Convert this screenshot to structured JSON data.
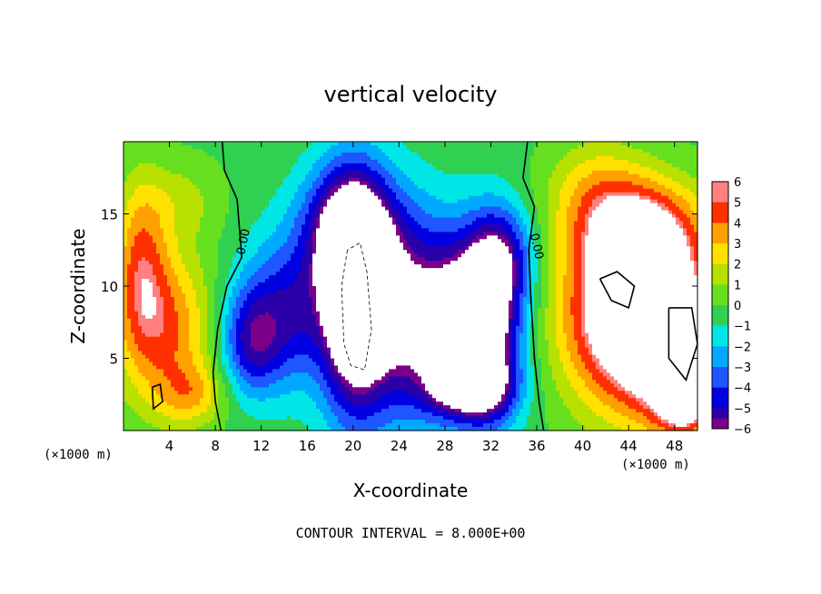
{
  "chart_data": {
    "type": "heatmap",
    "title": "vertical velocity",
    "xlabel": "X-coordinate",
    "ylabel": "Z-coordinate",
    "x_unit": "(×1000 m)",
    "y_unit": "(×1000 m)",
    "xlim": [
      0,
      50
    ],
    "ylim": [
      0,
      20
    ],
    "x_ticks": [
      4,
      8,
      12,
      16,
      20,
      24,
      28,
      32,
      36,
      40,
      44,
      48
    ],
    "y_ticks": [
      5,
      10,
      15
    ],
    "colorbar": {
      "min": -6,
      "max": 6,
      "ticks": [
        "6",
        "5",
        "4",
        "3",
        "2",
        "1",
        "0",
        "−1",
        "−2",
        "−3",
        "−4",
        "−5",
        "−6"
      ]
    },
    "contour_label": "0.00",
    "note": "CONTOUR INTERVAL = 8.000E+00",
    "regions": [
      {
        "x": 3.5,
        "y": 7,
        "value": 4.5,
        "sx": 3.0,
        "sy": 4.0
      },
      {
        "x": 1.5,
        "y": 12,
        "value": 3.5,
        "sx": 1.6,
        "sy": 4.0
      },
      {
        "x": 6.0,
        "y": 2.5,
        "value": 2.5,
        "sx": 2.0,
        "sy": 1.5
      },
      {
        "x": 5.0,
        "y": 16,
        "value": 1.5,
        "sx": 2.5,
        "sy": 2.0
      },
      {
        "x": 20.0,
        "y": 9,
        "value": -8.0,
        "sx": 2.0,
        "sy": 5.5
      },
      {
        "x": 24.0,
        "y": 8,
        "value": -6.0,
        "sx": 3.0,
        "sy": 5.0
      },
      {
        "x": 19.5,
        "y": 14,
        "value": -5.5,
        "sx": 3.0,
        "sy": 3.0
      },
      {
        "x": 14.0,
        "y": 8,
        "value": -4.5,
        "sx": 3.0,
        "sy": 3.5
      },
      {
        "x": 11.0,
        "y": 6,
        "value": -3.5,
        "sx": 1.8,
        "sy": 2.5
      },
      {
        "x": 29.0,
        "y": 8,
        "value": -5.5,
        "sx": 2.5,
        "sy": 4.0
      },
      {
        "x": 32.0,
        "y": 7,
        "value": -6.0,
        "sx": 2.0,
        "sy": 4.5
      },
      {
        "x": 30.0,
        "y": 3,
        "value": -6.0,
        "sx": 2.5,
        "sy": 1.5
      },
      {
        "x": 33.0,
        "y": 12,
        "value": -4.0,
        "sx": 2.0,
        "sy": 2.5
      },
      {
        "x": 44.0,
        "y": 8,
        "value": 9.0,
        "sx": 4.0,
        "sy": 4.5
      },
      {
        "x": 48.0,
        "y": 6,
        "value": 6.0,
        "sx": 2.5,
        "sy": 4.0
      },
      {
        "x": 45.0,
        "y": 14,
        "value": 4.5,
        "sx": 4.0,
        "sy": 2.5
      },
      {
        "x": 41.0,
        "y": 17,
        "value": 2.0,
        "sx": 3.0,
        "sy": 2.5
      },
      {
        "x": 49.0,
        "y": 2,
        "value": 5.0,
        "sx": 1.5,
        "sy": 1.5
      }
    ]
  }
}
